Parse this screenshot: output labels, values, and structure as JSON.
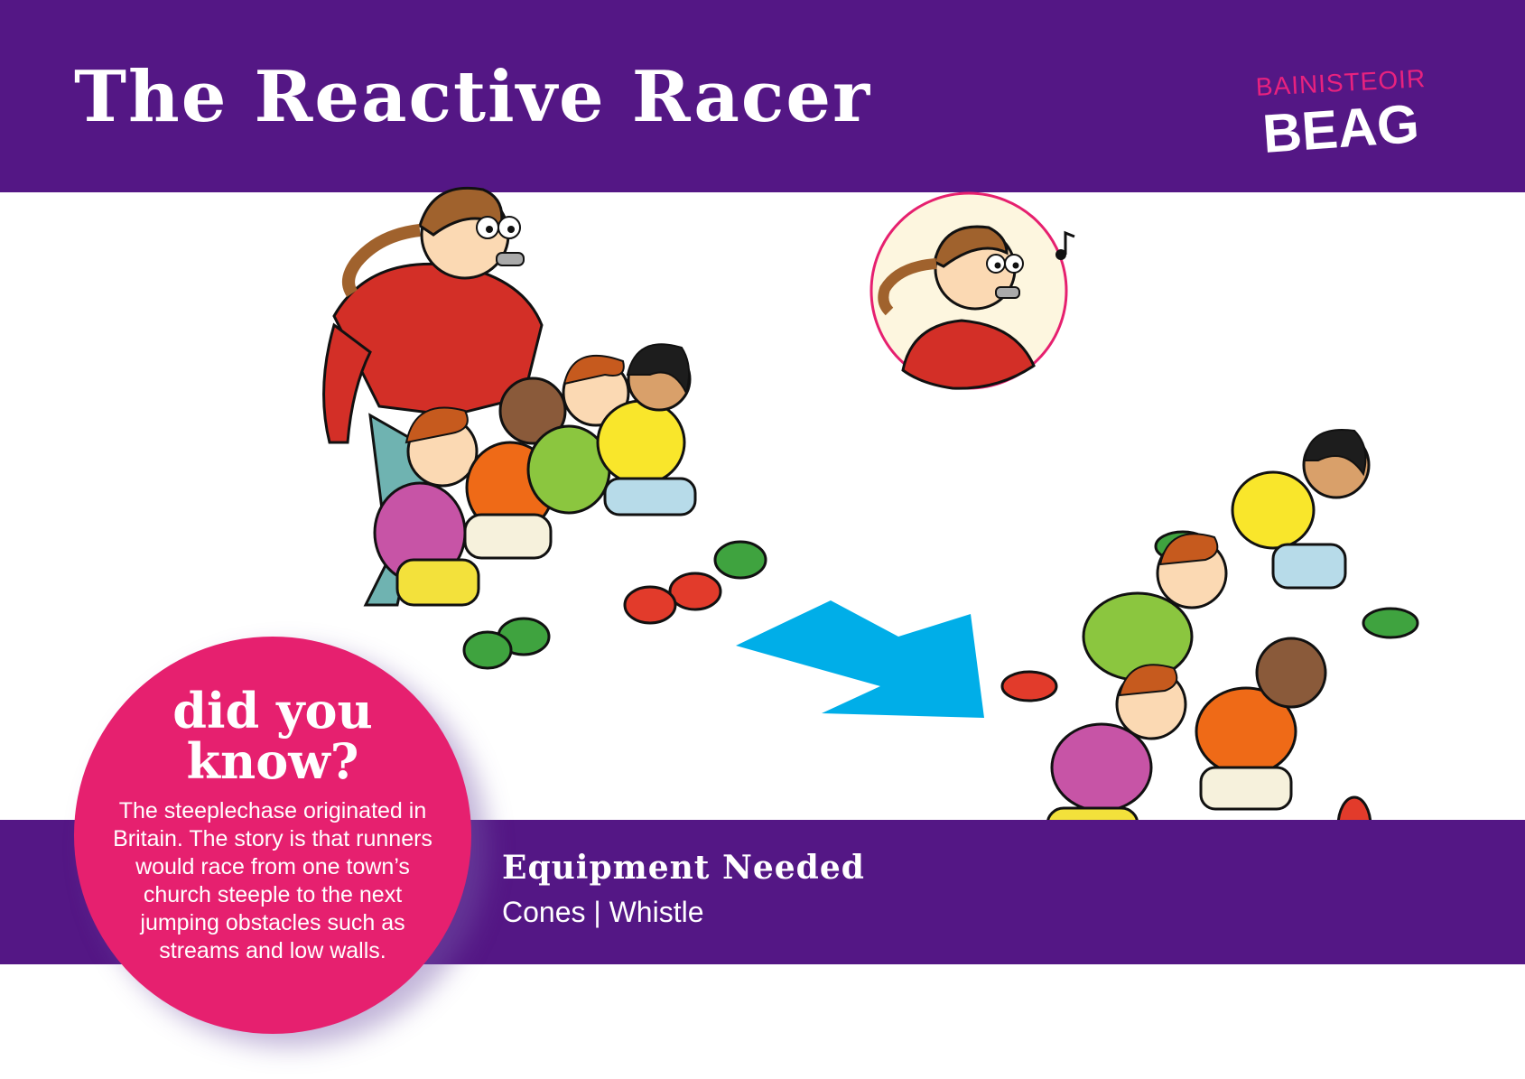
{
  "header": {
    "title": "The Reactive Racer",
    "logo_top": "BAINISTEOIR",
    "logo_main": "BEAG"
  },
  "did_you_know": {
    "title_line1": "did you",
    "title_line2": "know?",
    "text": "The steeplechase originated in Britain. The story is that runners would race from one town’s church steeple to the next jumping obstacles such as streams and low walls."
  },
  "equipment": {
    "title": "Equipment Needed",
    "items": "Cones | Whistle"
  },
  "colors": {
    "band": "#541785",
    "pink": "#e6206f",
    "arrow": "#00aee8",
    "coach_jacket": "#d32f27"
  },
  "icons": {
    "music_note": "music-note-icon",
    "arrow": "arrow-icon"
  }
}
